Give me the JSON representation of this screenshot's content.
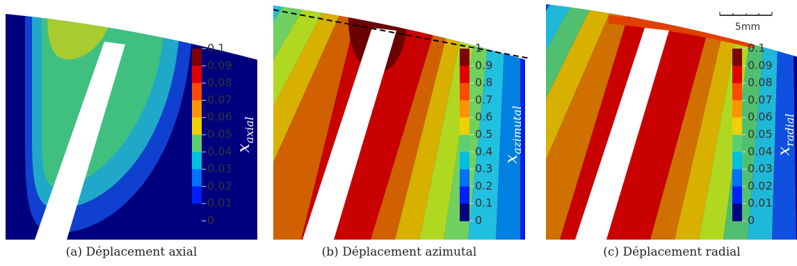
{
  "panels": [
    {
      "caption": "(a) Déplacement axial",
      "colorbar": {
        "title": "x",
        "subscript": "axial",
        "ticks": [
          0.1,
          0.09,
          0.08,
          0.07,
          0.06,
          0.05,
          0.04,
          0.03,
          0.02,
          0.01,
          0
        ]
      }
    },
    {
      "caption": "(b) Déplacement azimutal",
      "colorbar": {
        "title": "x",
        "subscript": "azimutal",
        "ticks": [
          1,
          0.9,
          0.8,
          0.7,
          0.6,
          0.5,
          0.4,
          0.3,
          0.2,
          0.1,
          0
        ]
      }
    },
    {
      "caption": "(c) Déplacement radial",
      "colorbar": {
        "title": "x",
        "subscript": "radial",
        "ticks": [
          0.1,
          0.09,
          0.08,
          0.07,
          0.06,
          0.05,
          0.04,
          0.03,
          0.02,
          0.01,
          0
        ]
      }
    }
  ],
  "scale_bar": "5mm"
}
